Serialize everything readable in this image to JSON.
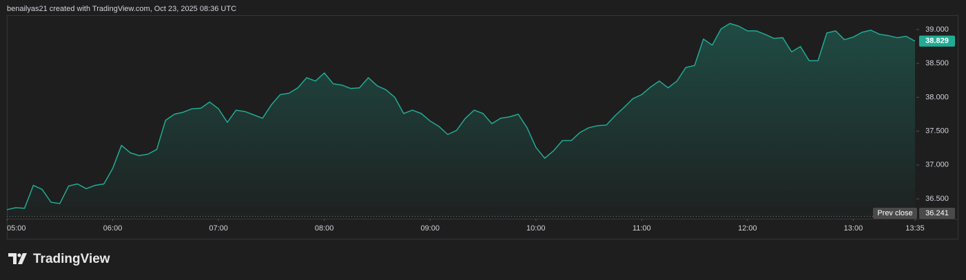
{
  "header": {
    "text": "benailyas21 created with TradingView.com, Oct 23, 2025 08:36 UTC"
  },
  "footer": {
    "brand": "TradingView"
  },
  "chart_data": {
    "type": "area",
    "x": [
      "05:00",
      "05:05",
      "05:10",
      "05:15",
      "05:20",
      "05:25",
      "05:30",
      "05:35",
      "05:40",
      "05:45",
      "05:50",
      "05:55",
      "06:00",
      "06:05",
      "06:10",
      "06:15",
      "06:20",
      "06:25",
      "06:30",
      "06:35",
      "06:40",
      "06:45",
      "06:50",
      "06:55",
      "07:00",
      "07:05",
      "07:10",
      "07:15",
      "07:20",
      "07:25",
      "07:30",
      "07:35",
      "07:40",
      "07:45",
      "07:50",
      "07:55",
      "08:00",
      "08:05",
      "08:10",
      "08:15",
      "08:20",
      "08:25",
      "08:30",
      "08:35",
      "08:40",
      "08:45",
      "08:50",
      "08:55",
      "09:00",
      "09:05",
      "09:10",
      "09:15",
      "09:20",
      "09:25",
      "09:30",
      "09:35",
      "09:40",
      "09:45",
      "09:50",
      "09:55",
      "10:00",
      "10:05",
      "10:10",
      "10:15",
      "10:20",
      "10:25",
      "10:30",
      "10:35",
      "10:40",
      "10:45",
      "10:50",
      "10:55",
      "11:00",
      "11:05",
      "11:10",
      "11:15",
      "11:20",
      "11:25",
      "11:30",
      "11:35",
      "11:40",
      "11:45",
      "11:50",
      "11:55",
      "12:00",
      "12:05",
      "12:10",
      "12:15",
      "12:20",
      "12:25",
      "12:30",
      "12:35",
      "12:40",
      "12:45",
      "12:50",
      "12:55",
      "13:00",
      "13:05",
      "13:10",
      "13:15",
      "13:20",
      "13:25",
      "13:30",
      "13:35"
    ],
    "series": [
      {
        "name": "Price",
        "color": "#22ab94",
        "values": [
          36.34,
          36.37,
          36.36,
          36.7,
          36.64,
          36.45,
          36.43,
          36.69,
          36.72,
          36.65,
          36.7,
          36.72,
          36.95,
          37.29,
          37.18,
          37.14,
          37.16,
          37.23,
          37.66,
          37.75,
          37.78,
          37.83,
          37.84,
          37.93,
          37.83,
          37.63,
          37.81,
          37.79,
          37.74,
          37.69,
          37.89,
          38.04,
          38.06,
          38.14,
          38.29,
          38.24,
          38.36,
          38.2,
          38.18,
          38.13,
          38.14,
          38.29,
          38.17,
          38.11,
          38.0,
          37.76,
          37.81,
          37.76,
          37.65,
          37.57,
          37.45,
          37.51,
          37.69,
          37.81,
          37.76,
          37.61,
          37.69,
          37.71,
          37.75,
          37.55,
          37.26,
          37.1,
          37.21,
          37.36,
          37.36,
          37.48,
          37.55,
          37.58,
          37.59,
          37.73,
          37.85,
          37.98,
          38.04,
          38.15,
          38.24,
          38.14,
          38.24,
          38.44,
          38.47,
          38.86,
          38.77,
          39.01,
          39.09,
          39.05,
          38.98,
          38.98,
          38.93,
          38.87,
          38.88,
          38.67,
          38.75,
          38.54,
          38.54,
          38.95,
          38.98,
          38.85,
          38.89,
          38.96,
          38.99,
          38.93,
          38.91,
          38.88,
          38.9,
          38.829
        ]
      }
    ],
    "ylim": [
      36.206,
      39.152
    ],
    "yticks": [
      {
        "value": 36.5,
        "label": "36.500"
      },
      {
        "value": 37,
        "label": "37.000"
      },
      {
        "value": 37.5,
        "label": "37.500"
      },
      {
        "value": 38,
        "label": "38.000"
      },
      {
        "value": 38.5,
        "label": "38.500"
      },
      {
        "value": 39,
        "label": "39.000"
      }
    ],
    "xticks": [
      "05:00",
      "06:00",
      "07:00",
      "08:00",
      "09:00",
      "10:00",
      "11:00",
      "12:00",
      "13:00",
      "13:35"
    ],
    "prev_close": {
      "label": "Prev close",
      "value": 36.241
    }
  }
}
